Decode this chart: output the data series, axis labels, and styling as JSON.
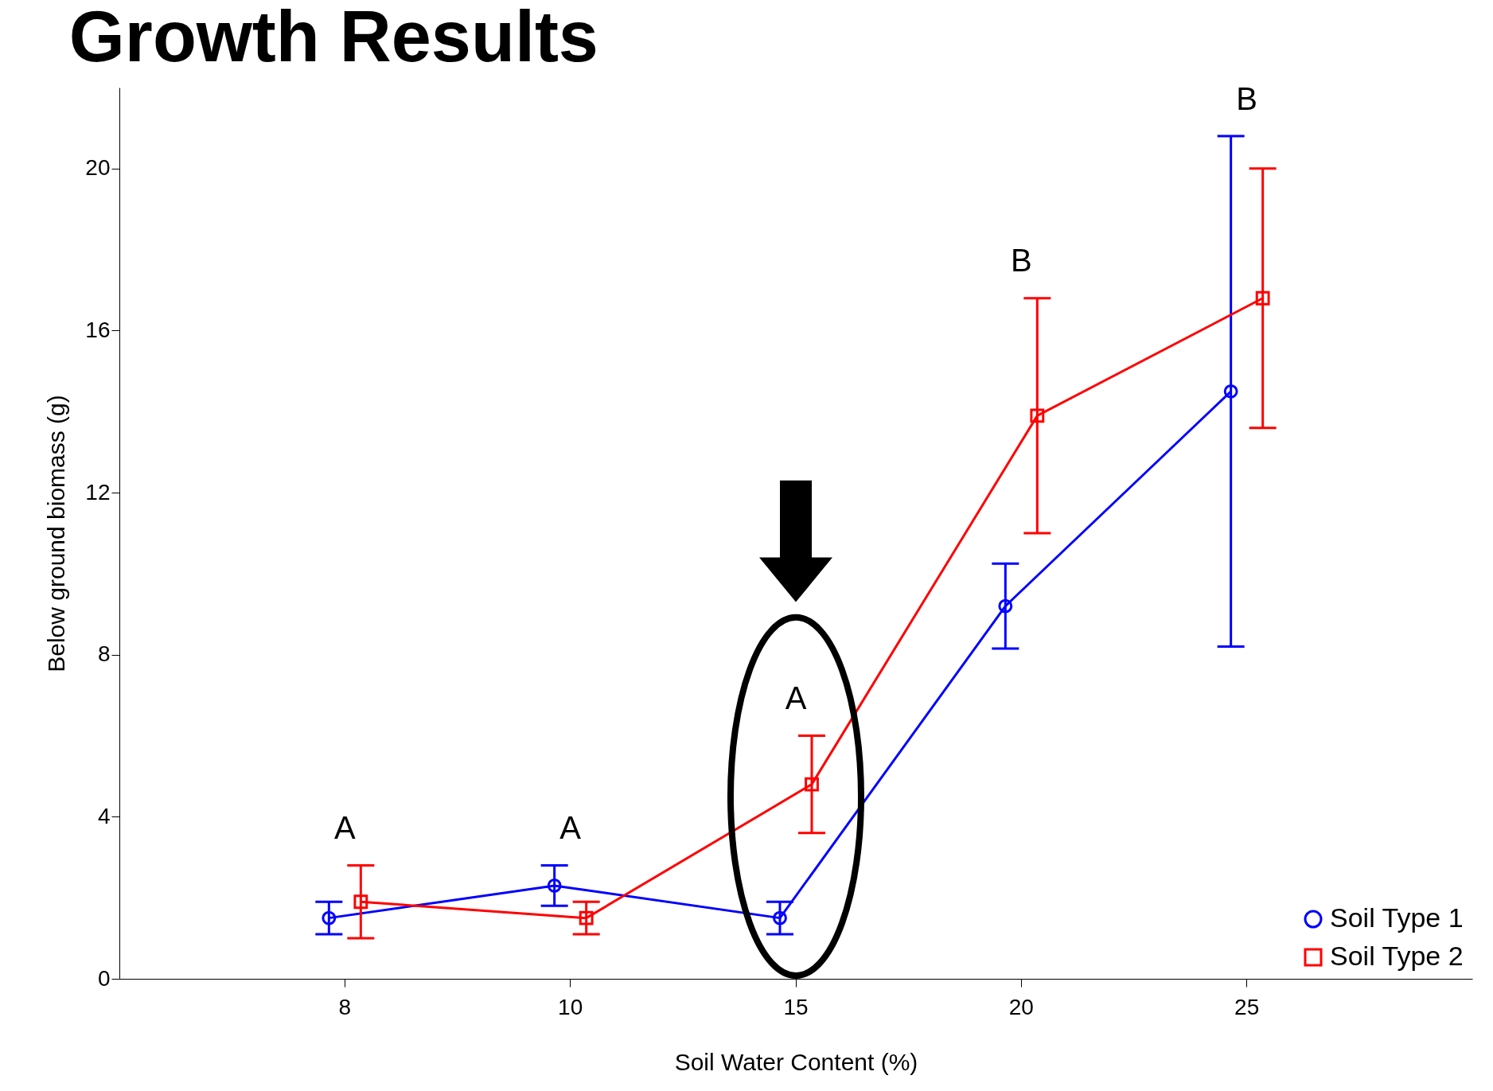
{
  "chart_data": {
    "type": "line",
    "title": "Growth Results",
    "xlabel": "Soil Water Content (%)",
    "ylabel": "Below ground biomass (g)",
    "categories": [
      "8",
      "10",
      "15",
      "20",
      "25"
    ],
    "series": [
      {
        "name": "Soil Type 1",
        "color": "#0000ff",
        "marker": "circle",
        "values": [
          1.5,
          2.3,
          1.5,
          9.2,
          14.5
        ],
        "errors": [
          0.4,
          0.5,
          0.4,
          1.05,
          6.3
        ]
      },
      {
        "name": "Soil Type 2",
        "color": "#ff0000",
        "marker": "square",
        "values": [
          1.9,
          1.5,
          4.8,
          13.9,
          16.8
        ],
        "errors": [
          0.9,
          0.4,
          1.2,
          2.9,
          3.2
        ]
      }
    ],
    "ylim": [
      0,
      22
    ],
    "yticks": [
      0,
      4,
      8,
      12,
      16,
      20
    ],
    "grid": false,
    "legend": "bottom right",
    "annotations": [
      "A",
      "A",
      "A",
      "B",
      "B"
    ]
  }
}
